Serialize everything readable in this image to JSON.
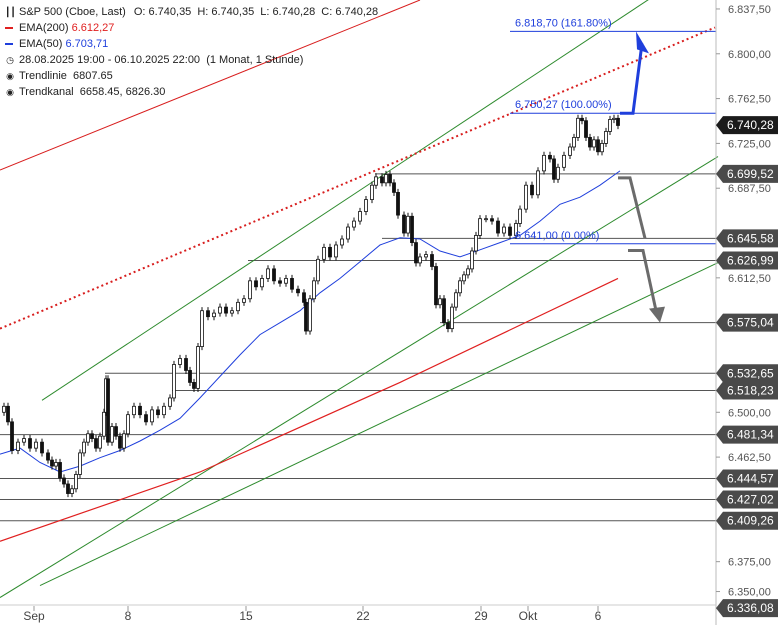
{
  "chart_data": {
    "type": "candlestick",
    "title": "S&P 500 (Cboe, Last)",
    "ohlc": {
      "open": "6.740,35",
      "high": "6.740,35",
      "low": "6.740,28",
      "close": "6.740,28"
    },
    "ema200": {
      "label": "EMA(200)",
      "value": "6.612,27",
      "color": "#e02020"
    },
    "ema50": {
      "label": "EMA(50)",
      "value": "6.703,71",
      "color": "#1f3fdc"
    },
    "range_text": "28.08.2025 19:00 - 06.10.2025 22:00",
    "interval_text": "(1 Monat, 1 Stunde)",
    "trendline": {
      "label": "Trendlinie",
      "value": "6807.65"
    },
    "trendchannel": {
      "label": "Trendkanal",
      "value": "6658.45, 6826.30"
    },
    "x_ticks": [
      "Sep",
      "8",
      "15",
      "22",
      "29",
      "Okt",
      "6"
    ],
    "y_ticks": [
      "6.837,50",
      "6.800,00",
      "6.762,50",
      "6.725,00",
      "6.687,50",
      "6.612,50",
      "6.500,00",
      "6.462,50",
      "6.375,00",
      "6.350,00"
    ],
    "y_range": [
      6322,
      6845
    ],
    "price_labels": [
      "6.740,28",
      "6.699,52",
      "6.645,58",
      "6.626,99",
      "6.575,04",
      "6.532,65",
      "6.518,23",
      "6.481,34",
      "6.444,57",
      "6.427,02",
      "6.409,26",
      "6.336,08"
    ],
    "fib_levels": [
      {
        "label": "6.818,70 (161.80%)",
        "value": 6818.7
      },
      {
        "label": "6.750,27 (100.00%)",
        "value": 6750.27
      },
      {
        "label": "6.641,00 (0.00%)",
        "value": 6641.0
      }
    ],
    "hlines": [
      6699.52,
      6645.58,
      6626.99,
      6575.04,
      6532.65,
      6518.23,
      6481.34,
      6444.57,
      6427.02,
      6409.26
    ],
    "price_path": [
      [
        0,
        6500
      ],
      [
        4,
        6505
      ],
      [
        8,
        6492
      ],
      [
        12,
        6468
      ],
      [
        18,
        6475
      ],
      [
        24,
        6478
      ],
      [
        30,
        6470
      ],
      [
        36,
        6475
      ],
      [
        42,
        6466
      ],
      [
        48,
        6460
      ],
      [
        52,
        6455
      ],
      [
        56,
        6458
      ],
      [
        60,
        6445
      ],
      [
        64,
        6440
      ],
      [
        68,
        6432
      ],
      [
        72,
        6436
      ],
      [
        76,
        6448
      ],
      [
        80,
        6466
      ],
      [
        84,
        6475
      ],
      [
        88,
        6482
      ],
      [
        92,
        6478
      ],
      [
        96,
        6470
      ],
      [
        100,
        6480
      ],
      [
        104,
        6500
      ],
      [
        106,
        6528
      ],
      [
        108,
        6475
      ],
      [
        112,
        6488
      ],
      [
        116,
        6480
      ],
      [
        120,
        6470
      ],
      [
        124,
        6482
      ],
      [
        128,
        6498
      ],
      [
        134,
        6505
      ],
      [
        140,
        6498
      ],
      [
        146,
        6492
      ],
      [
        152,
        6502
      ],
      [
        158,
        6498
      ],
      [
        164,
        6505
      ],
      [
        170,
        6512
      ],
      [
        174,
        6540
      ],
      [
        180,
        6545
      ],
      [
        186,
        6535
      ],
      [
        190,
        6525
      ],
      [
        194,
        6520
      ],
      [
        198,
        6555
      ],
      [
        202,
        6585
      ],
      [
        208,
        6580
      ],
      [
        214,
        6583
      ],
      [
        220,
        6588
      ],
      [
        226,
        6583
      ],
      [
        232,
        6585
      ],
      [
        238,
        6592
      ],
      [
        244,
        6595
      ],
      [
        250,
        6610
      ],
      [
        256,
        6605
      ],
      [
        262,
        6612
      ],
      [
        268,
        6620
      ],
      [
        274,
        6610
      ],
      [
        280,
        6608
      ],
      [
        286,
        6612
      ],
      [
        292,
        6603
      ],
      [
        298,
        6600
      ],
      [
        304,
        6592
      ],
      [
        306,
        6568
      ],
      [
        310,
        6595
      ],
      [
        314,
        6610
      ],
      [
        318,
        6628
      ],
      [
        324,
        6638
      ],
      [
        330,
        6630
      ],
      [
        336,
        6640
      ],
      [
        342,
        6645
      ],
      [
        348,
        6655
      ],
      [
        354,
        6660
      ],
      [
        360,
        6668
      ],
      [
        366,
        6678
      ],
      [
        372,
        6690
      ],
      [
        376,
        6697
      ],
      [
        382,
        6692
      ],
      [
        386,
        6699
      ],
      [
        390,
        6692
      ],
      [
        394,
        6684
      ],
      [
        398,
        6665
      ],
      [
        404,
        6650
      ],
      [
        408,
        6664
      ],
      [
        412,
        6642
      ],
      [
        416,
        6625
      ],
      [
        420,
        6630
      ],
      [
        426,
        6632
      ],
      [
        432,
        6622
      ],
      [
        436,
        6590
      ],
      [
        440,
        6595
      ],
      [
        444,
        6575
      ],
      [
        448,
        6570
      ],
      [
        452,
        6588
      ],
      [
        456,
        6600
      ],
      [
        460,
        6610
      ],
      [
        464,
        6615
      ],
      [
        468,
        6620
      ],
      [
        472,
        6635
      ],
      [
        476,
        6648
      ],
      [
        480,
        6662
      ],
      [
        486,
        6662
      ],
      [
        492,
        6660
      ],
      [
        498,
        6650
      ],
      [
        504,
        6655
      ],
      [
        510,
        6648
      ],
      [
        516,
        6658
      ],
      [
        520,
        6670
      ],
      [
        526,
        6690
      ],
      [
        532,
        6682
      ],
      [
        538,
        6702
      ],
      [
        544,
        6715
      ],
      [
        550,
        6712
      ],
      [
        554,
        6695
      ],
      [
        558,
        6705
      ],
      [
        564,
        6715
      ],
      [
        570,
        6722
      ],
      [
        574,
        6730
      ],
      [
        578,
        6746
      ],
      [
        582,
        6744
      ],
      [
        586,
        6730
      ],
      [
        590,
        6722
      ],
      [
        594,
        6728
      ],
      [
        598,
        6718
      ],
      [
        602,
        6725
      ],
      [
        606,
        6735
      ],
      [
        610,
        6745
      ],
      [
        614,
        6746
      ],
      [
        618,
        6740
      ]
    ],
    "ema50_path": [
      [
        0,
        6465
      ],
      [
        20,
        6470
      ],
      [
        40,
        6458
      ],
      [
        60,
        6450
      ],
      [
        80,
        6455
      ],
      [
        100,
        6462
      ],
      [
        120,
        6468
      ],
      [
        140,
        6476
      ],
      [
        160,
        6485
      ],
      [
        180,
        6495
      ],
      [
        200,
        6512
      ],
      [
        220,
        6530
      ],
      [
        240,
        6548
      ],
      [
        260,
        6565
      ],
      [
        280,
        6575
      ],
      [
        300,
        6585
      ],
      [
        320,
        6600
      ],
      [
        340,
        6612
      ],
      [
        360,
        6626
      ],
      [
        380,
        6640
      ],
      [
        400,
        6646
      ],
      [
        420,
        6645
      ],
      [
        440,
        6635
      ],
      [
        460,
        6630
      ],
      [
        480,
        6636
      ],
      [
        500,
        6642
      ],
      [
        520,
        6648
      ],
      [
        540,
        6660
      ],
      [
        560,
        6674
      ],
      [
        580,
        6680
      ],
      [
        600,
        6690
      ],
      [
        620,
        6702
      ]
    ],
    "ema200_path": [
      [
        0,
        6392
      ],
      [
        200,
        6450
      ],
      [
        400,
        6525
      ],
      [
        618,
        6612
      ]
    ],
    "trendline_path": [
      [
        0,
        6570
      ],
      [
        715,
        6822
      ]
    ],
    "channel_upper": [
      [
        42,
        6510
      ],
      [
        675,
        6860
      ]
    ],
    "channel_lower1": [
      [
        0,
        6345
      ],
      [
        718,
        6714
      ]
    ],
    "channel_lower2": [
      [
        40,
        6355
      ],
      [
        720,
        6626
      ]
    ]
  }
}
